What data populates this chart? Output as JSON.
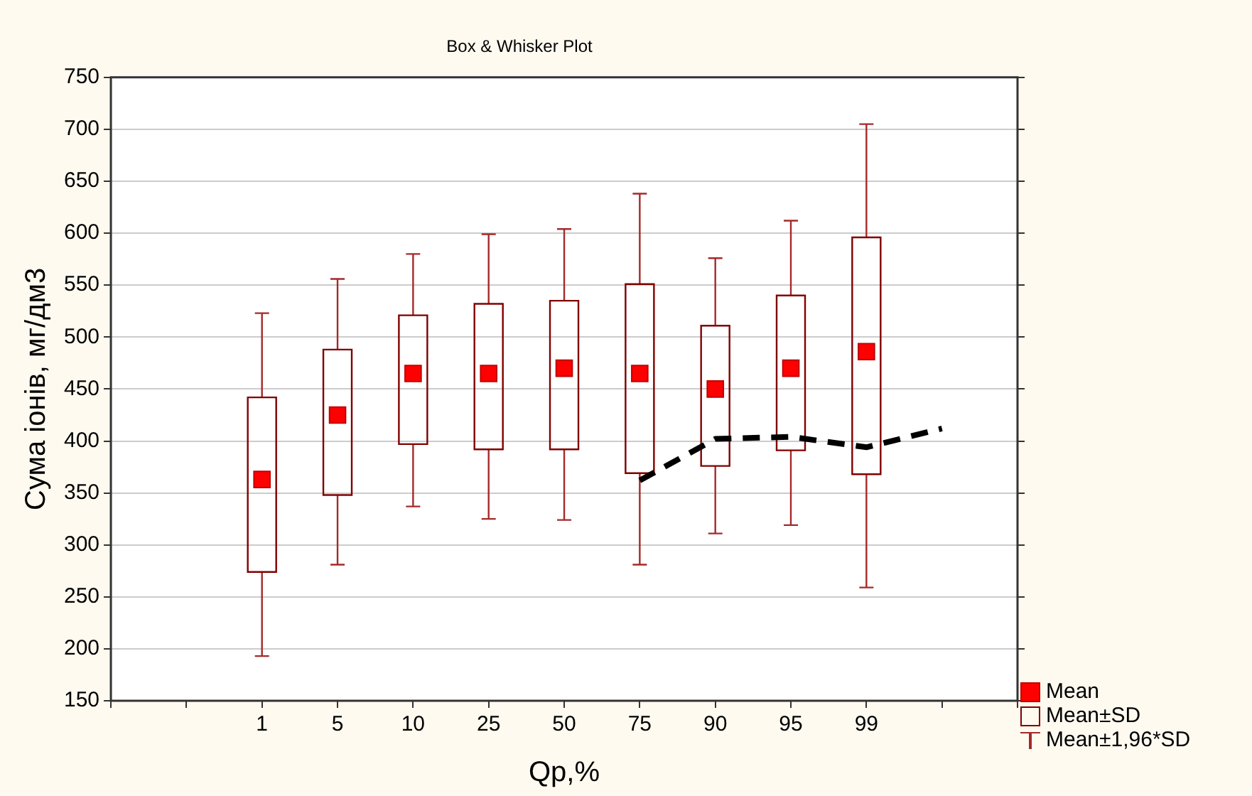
{
  "chart_data": {
    "type": "box",
    "title": "Box & Whisker Plot",
    "xlabel": "Qp,%",
    "ylabel": "Сума іонів, мг/дм3",
    "categories": [
      null,
      null,
      "1",
      "5",
      "10",
      "25",
      "50",
      "75",
      "90",
      "95",
      "99",
      null,
      null
    ],
    "ylim": [
      150,
      750
    ],
    "yticks": [
      150,
      200,
      250,
      300,
      350,
      400,
      450,
      500,
      550,
      600,
      650,
      700,
      750
    ],
    "grid": "y",
    "legend": "bottom right",
    "annotations": [
      "Mean±1,96*SD"
    ],
    "series": [
      {
        "name": "Mean",
        "type": "scatter",
        "marker": "square",
        "color": "#ff0000",
        "values": [
          null,
          null,
          363,
          425,
          465,
          465,
          470,
          465,
          450,
          470,
          486,
          null,
          null
        ]
      },
      {
        "name": "Mean±SD",
        "color": "#800000",
        "boxes": [
          null,
          null,
          {
            "low": 193,
            "q1": 274,
            "q3": 442,
            "high": 523
          },
          {
            "low": 281,
            "q1": 348,
            "q3": 488,
            "high": 556
          },
          {
            "low": 337,
            "q1": 397,
            "q3": 521,
            "high": 580
          },
          {
            "low": 325,
            "q1": 392,
            "q3": 532,
            "high": 599
          },
          {
            "low": 324,
            "q1": 392,
            "q3": 535,
            "high": 604
          },
          {
            "low": 281,
            "q1": 369,
            "q3": 551,
            "high": 638
          },
          {
            "low": 311,
            "q1": 376,
            "q3": 511,
            "high": 576
          },
          {
            "low": 319,
            "q1": 391,
            "q3": 540,
            "high": 612
          },
          {
            "low": 259,
            "q1": 368,
            "q3": 596,
            "high": 705
          },
          null,
          null
        ]
      },
      {
        "type": "line",
        "line_style": "dashed",
        "marker": "none",
        "color": "#000000",
        "values": [
          null,
          null,
          null,
          null,
          null,
          null,
          null,
          362,
          402,
          404,
          394,
          412,
          null
        ]
      }
    ]
  }
}
